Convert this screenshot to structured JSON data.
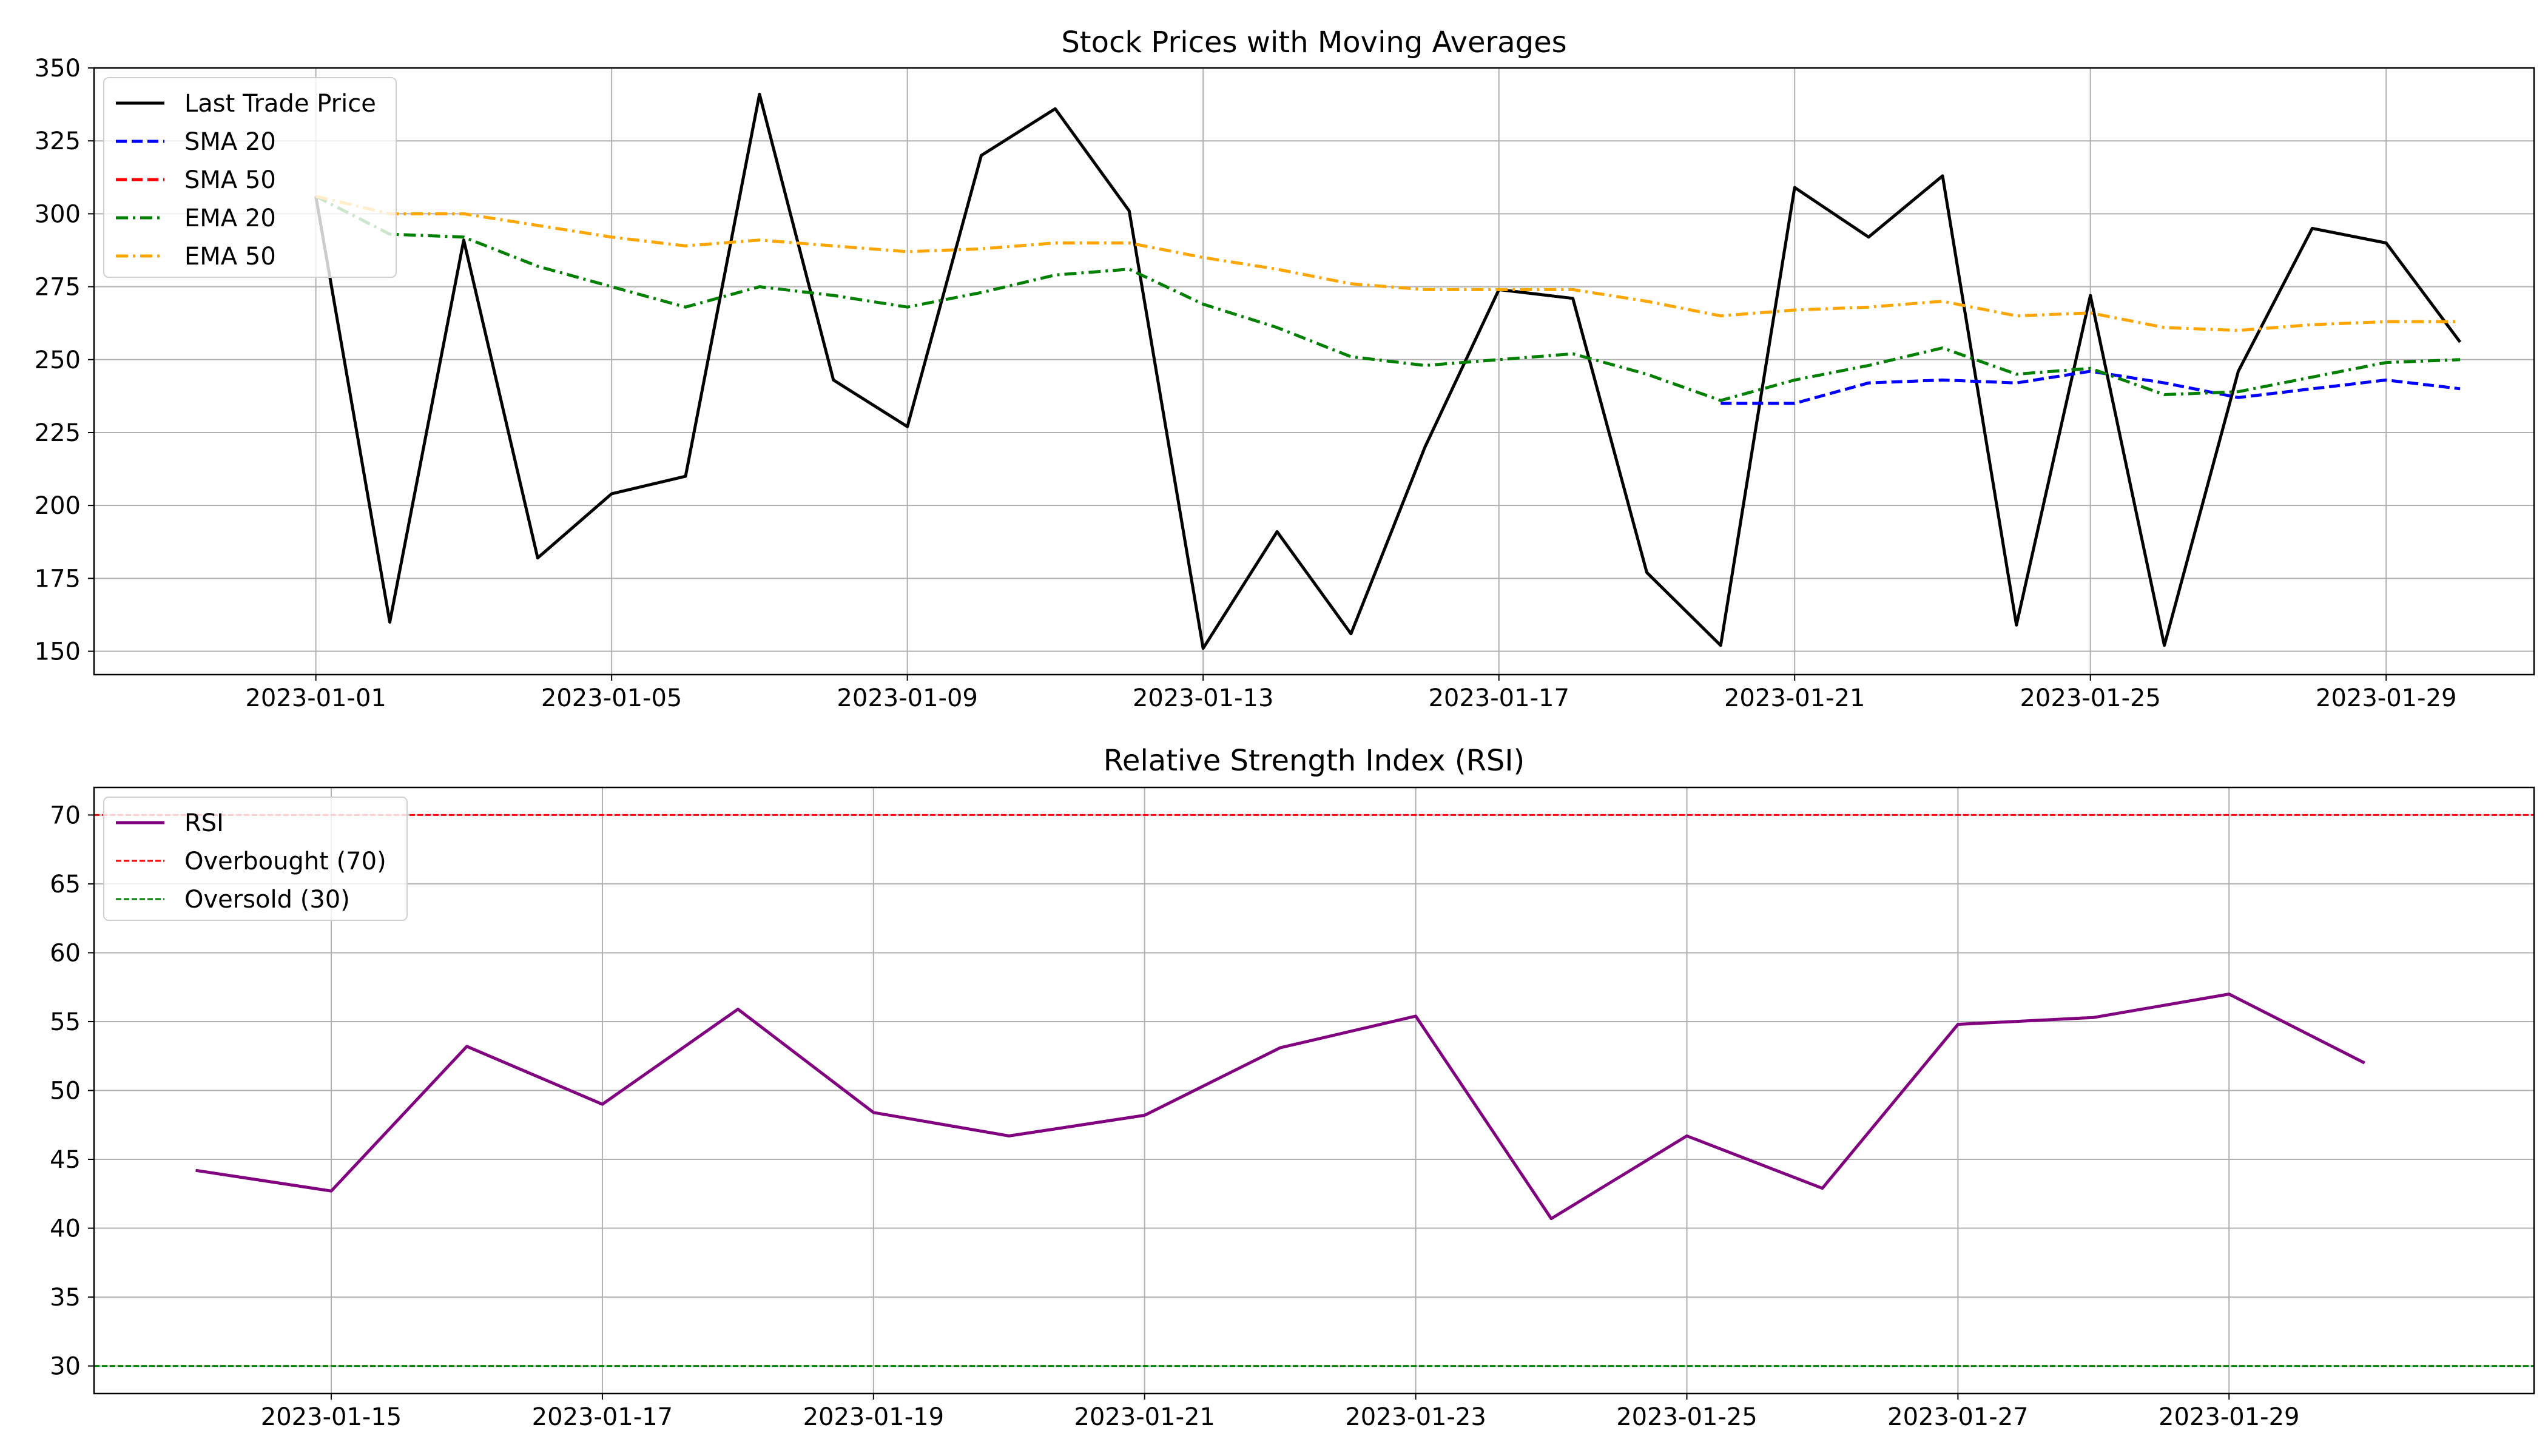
{
  "chart_data": [
    {
      "type": "line",
      "title": "Stock Prices with Moving Averages",
      "xlabel": "",
      "ylabel": "",
      "x_type": "date",
      "xlim": [
        "2022-12-29",
        "2023-01-31"
      ],
      "ylim": [
        142,
        350
      ],
      "x_ticks": [
        "2023-01-01",
        "2023-01-05",
        "2023-01-09",
        "2023-01-13",
        "2023-01-17",
        "2023-01-21",
        "2023-01-25",
        "2023-01-29"
      ],
      "y_ticks": [
        150,
        175,
        200,
        225,
        250,
        275,
        300,
        325,
        350
      ],
      "grid": true,
      "legend_position": "top-left",
      "x": [
        "2023-01-01",
        "2023-01-02",
        "2023-01-03",
        "2023-01-04",
        "2023-01-05",
        "2023-01-06",
        "2023-01-07",
        "2023-01-08",
        "2023-01-09",
        "2023-01-10",
        "2023-01-11",
        "2023-01-12",
        "2023-01-13",
        "2023-01-14",
        "2023-01-15",
        "2023-01-16",
        "2023-01-17",
        "2023-01-18",
        "2023-01-19",
        "2023-01-20",
        "2023-01-21",
        "2023-01-22",
        "2023-01-23",
        "2023-01-24",
        "2023-01-25",
        "2023-01-26",
        "2023-01-27",
        "2023-01-28",
        "2023-01-29",
        "2023-01-30"
      ],
      "series": [
        {
          "name": "Last Trade Price",
          "color": "#000000",
          "style": "solid",
          "values": [
            306,
            160,
            291,
            182,
            204,
            210,
            341,
            243,
            227,
            320,
            336,
            301,
            151,
            191,
            156,
            220,
            274,
            271,
            177,
            152,
            309,
            292,
            313,
            159,
            272,
            152,
            246,
            295,
            290,
            256
          ]
        },
        {
          "name": "SMA 20",
          "color": "#0000ff",
          "style": "dashed",
          "values": [
            null,
            null,
            null,
            null,
            null,
            null,
            null,
            null,
            null,
            null,
            null,
            null,
            null,
            null,
            null,
            null,
            null,
            null,
            null,
            235,
            235,
            242,
            243,
            242,
            246,
            242,
            237,
            240,
            243,
            240
          ]
        },
        {
          "name": "SMA 50",
          "color": "#ff0000",
          "style": "dashed",
          "values": [
            null,
            null,
            null,
            null,
            null,
            null,
            null,
            null,
            null,
            null,
            null,
            null,
            null,
            null,
            null,
            null,
            null,
            null,
            null,
            null,
            null,
            null,
            null,
            null,
            null,
            null,
            null,
            null,
            null,
            null
          ]
        },
        {
          "name": "EMA 20",
          "color": "#008000",
          "style": "dashdot",
          "values": [
            306,
            293,
            292,
            282,
            275,
            268,
            275,
            272,
            268,
            273,
            279,
            281,
            269,
            261,
            251,
            248,
            250,
            252,
            245,
            236,
            243,
            248,
            254,
            245,
            247,
            238,
            239,
            244,
            249,
            250
          ]
        },
        {
          "name": "EMA 50",
          "color": "#ffa500",
          "style": "dashdot",
          "values": [
            306,
            300,
            300,
            296,
            292,
            289,
            291,
            289,
            287,
            288,
            290,
            290,
            285,
            281,
            276,
            274,
            274,
            274,
            270,
            265,
            267,
            268,
            270,
            265,
            266,
            261,
            260,
            262,
            263,
            263
          ]
        }
      ]
    },
    {
      "type": "line",
      "title": "Relative Strength Index (RSI)",
      "xlabel": "",
      "ylabel": "",
      "x_type": "date",
      "xlim": [
        "2023-01-13T06:00",
        "2023-01-31T06:00"
      ],
      "ylim": [
        28,
        72
      ],
      "x_ticks": [
        "2023-01-15",
        "2023-01-17",
        "2023-01-19",
        "2023-01-21",
        "2023-01-23",
        "2023-01-25",
        "2023-01-27",
        "2023-01-29"
      ],
      "y_ticks": [
        30,
        35,
        40,
        45,
        50,
        55,
        60,
        65,
        70
      ],
      "grid": true,
      "legend_position": "top-left",
      "x": [
        "2023-01-14",
        "2023-01-15",
        "2023-01-16",
        "2023-01-17",
        "2023-01-18",
        "2023-01-19",
        "2023-01-20",
        "2023-01-21",
        "2023-01-22",
        "2023-01-23",
        "2023-01-24",
        "2023-01-25",
        "2023-01-26",
        "2023-01-27",
        "2023-01-28",
        "2023-01-29",
        "2023-01-30"
      ],
      "series": [
        {
          "name": "RSI",
          "color": "#800080",
          "style": "solid",
          "values": [
            44.2,
            42.7,
            53.2,
            49.0,
            55.9,
            48.4,
            46.7,
            48.2,
            53.1,
            55.4,
            40.7,
            46.7,
            42.9,
            54.8,
            55.3,
            57.0,
            52.0
          ]
        }
      ],
      "hlines": [
        {
          "name": "Overbought (70)",
          "y": 70,
          "color": "#ff0000",
          "style": "dashed"
        },
        {
          "name": "Oversold (30)",
          "y": 30,
          "color": "#008000",
          "style": "dashed"
        }
      ]
    }
  ]
}
